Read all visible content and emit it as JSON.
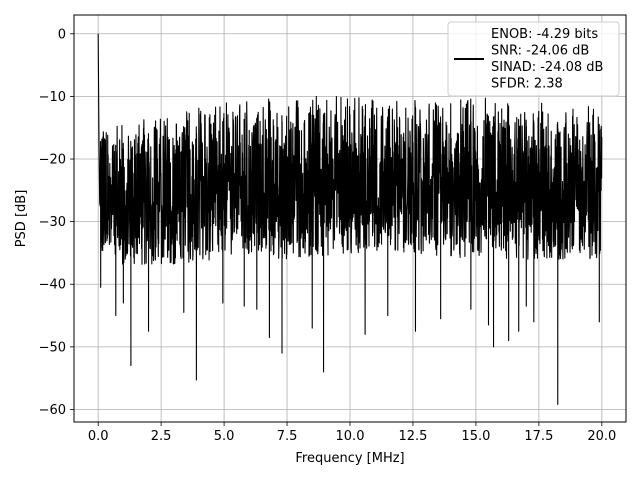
{
  "chart_data": {
    "type": "line",
    "title": "",
    "xlabel": "Frequency [MHz]",
    "ylabel": "PSD [dB]",
    "xlim": [
      -0.96,
      20.96
    ],
    "ylim": [
      -62,
      3
    ],
    "xticks": [
      0.0,
      2.5,
      5.0,
      7.5,
      10.0,
      12.5,
      15.0,
      17.5,
      20.0
    ],
    "xtick_labels": [
      "0.0",
      "2.5",
      "5.0",
      "7.5",
      "10.0",
      "12.5",
      "15.0",
      "17.5",
      "20.0"
    ],
    "yticks": [
      0,
      -10,
      -20,
      -30,
      -40,
      -50,
      -60
    ],
    "ytick_labels": [
      "0",
      "−10",
      "−20",
      "−30",
      "−40",
      "−50",
      "−60"
    ],
    "grid": true,
    "legend_position": "top-right",
    "series": [
      {
        "label_lines": [
          "ENOB: -4.29 bits",
          "SNR: -24.06 dB",
          "SINAD: -24.08 dB",
          "SFDR: 2.38"
        ],
        "color": "#000000",
        "envelope": {
          "x": [
            0.0,
            0.5,
            1.0,
            2.5,
            5.0,
            7.5,
            10.0,
            12.5,
            15.0,
            17.5,
            20.0
          ],
          "upper": [
            -14,
            -15,
            -14.5,
            -13,
            -11,
            -10,
            -10,
            -10.5,
            -10,
            -11,
            -11.5
          ],
          "lower": [
            -34,
            -36,
            -37,
            -37,
            -36,
            -36,
            -35,
            -35,
            -36,
            -36,
            -36
          ]
        },
        "peaks": [
          {
            "x": 0.0,
            "y": 0.0
          },
          {
            "x": 0.03,
            "y": -16.0
          },
          {
            "x": 0.06,
            "y": -27.0
          }
        ],
        "deep_minima": [
          {
            "x": 0.1,
            "y": -40.5
          },
          {
            "x": 0.7,
            "y": -45.0
          },
          {
            "x": 1.0,
            "y": -43.0
          },
          {
            "x": 1.3,
            "y": -53.0
          },
          {
            "x": 2.0,
            "y": -47.5
          },
          {
            "x": 3.4,
            "y": -44.5
          },
          {
            "x": 3.9,
            "y": -55.3
          },
          {
            "x": 4.95,
            "y": -43.0
          },
          {
            "x": 5.8,
            "y": -43.5
          },
          {
            "x": 6.3,
            "y": -44.0
          },
          {
            "x": 6.8,
            "y": -48.5
          },
          {
            "x": 7.3,
            "y": -51.0
          },
          {
            "x": 8.5,
            "y": -47.0
          },
          {
            "x": 8.95,
            "y": -54.0
          },
          {
            "x": 10.6,
            "y": -48.0
          },
          {
            "x": 11.5,
            "y": -45.0
          },
          {
            "x": 12.6,
            "y": -47.5
          },
          {
            "x": 13.6,
            "y": -45.5
          },
          {
            "x": 14.8,
            "y": -44.0
          },
          {
            "x": 15.5,
            "y": -46.5
          },
          {
            "x": 15.7,
            "y": -50.0
          },
          {
            "x": 16.3,
            "y": -49.0
          },
          {
            "x": 16.7,
            "y": -47.5
          },
          {
            "x": 17.0,
            "y": -43.5
          },
          {
            "x": 17.3,
            "y": -46.0
          },
          {
            "x": 18.25,
            "y": -59.2
          },
          {
            "x": 19.9,
            "y": -46.0
          }
        ]
      }
    ]
  }
}
